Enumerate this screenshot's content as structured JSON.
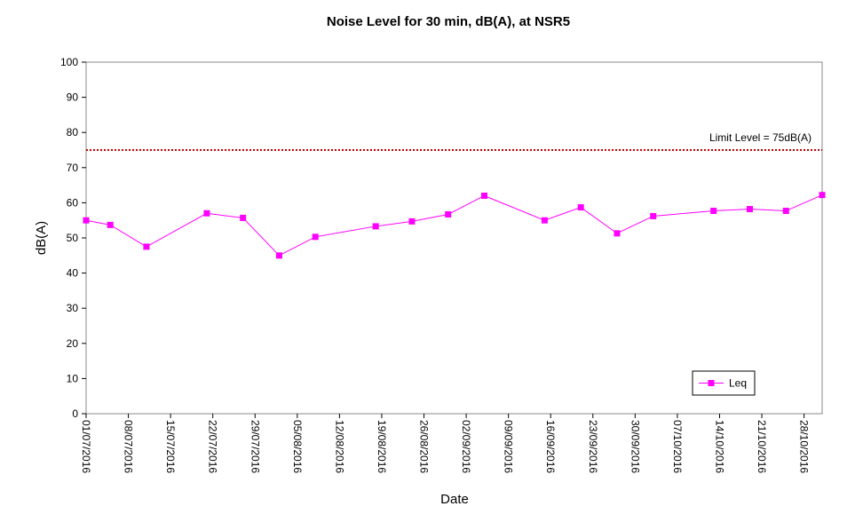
{
  "chart_data": {
    "type": "line",
    "title": "Noise Level for 30 min, dB(A), at NSR5",
    "x_label": "Date",
    "y_label": "dB(A)",
    "x": [
      "01/07/2016",
      "05/07/2016",
      "11/07/2016",
      "21/07/2016",
      "27/07/2016",
      "02/08/2016",
      "08/08/2016",
      "18/08/2016",
      "24/08/2016",
      "30/08/2016",
      "05/09/2016",
      "15/09/2016",
      "21/09/2016",
      "27/09/2016",
      "03/10/2016",
      "13/10/2016",
      "19/10/2016",
      "25/10/2016",
      "31/10/2016"
    ],
    "series": [
      {
        "name": "Leq",
        "color": "#ff00ff",
        "values": [
          55.0,
          53.7,
          47.5,
          57.0,
          55.7,
          45.0,
          50.3,
          53.3,
          54.7,
          56.7,
          62.0,
          55.0,
          58.7,
          51.3,
          56.2,
          57.7,
          58.2,
          57.7,
          62.2
        ]
      }
    ],
    "xlim": [
      "01/07/2016",
      "31/10/2016"
    ],
    "xticks": [
      "01/07/2016",
      "08/07/2016",
      "15/07/2016",
      "22/07/2016",
      "29/07/2016",
      "05/08/2016",
      "12/08/2016",
      "19/08/2016",
      "26/08/2016",
      "02/09/2016",
      "09/09/2016",
      "16/09/2016",
      "23/09/2016",
      "30/09/2016",
      "07/10/2016",
      "14/10/2016",
      "21/10/2016",
      "28/10/2016"
    ],
    "ylim": [
      0,
      100
    ],
    "yticks": [
      0,
      10,
      20,
      30,
      40,
      50,
      60,
      70,
      80,
      90,
      100
    ],
    "limit": {
      "label": "Limit Level = 75dB(A)",
      "value": 75,
      "color": "#c00000"
    },
    "legend": "bottom-right"
  }
}
